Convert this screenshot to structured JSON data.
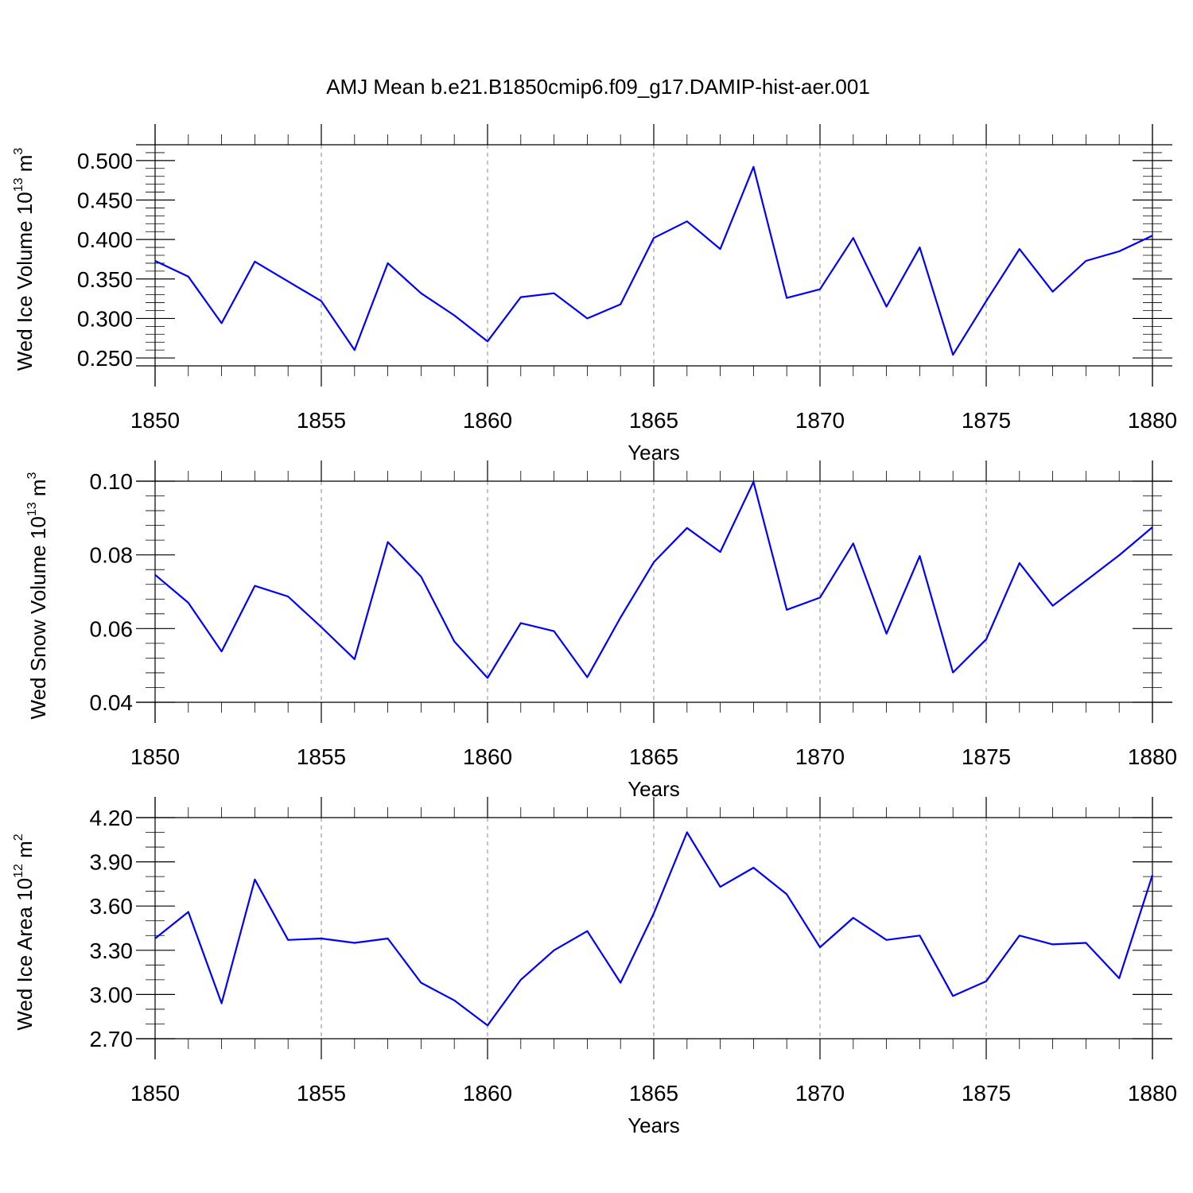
{
  "title": "AMJ Mean b.e21.B1850cmip6.f09_g17.DAMIP-hist-aer.001",
  "colors": {
    "series": "#0000ff",
    "grid": "#888888",
    "axis": "#000000"
  },
  "chart_data": [
    {
      "type": "line",
      "ylabel": "Wed Ice Volume 10",
      "ylabel_exp": "13",
      "ylabel_unit": " m",
      "ylabel_unit_exp": "3",
      "xlabel": "Years",
      "xlim": [
        1850,
        1880
      ],
      "ylim": [
        0.24,
        0.52
      ],
      "yticks": [
        0.25,
        0.3,
        0.35,
        0.4,
        0.45,
        0.5
      ],
      "ytick_labels": [
        "0.250",
        "0.300",
        "0.350",
        "0.400",
        "0.450",
        "0.500"
      ],
      "yminor_step": 0.01,
      "xticks": [
        1850,
        1855,
        1860,
        1865,
        1870,
        1875,
        1880
      ],
      "xtick_labels": [
        "1850",
        "1855",
        "1860",
        "1865",
        "1870",
        "1875",
        "1880"
      ],
      "grid_x": [
        1855,
        1860,
        1865,
        1870,
        1875
      ],
      "x": [
        1850,
        1851,
        1852,
        1853,
        1854,
        1855,
        1856,
        1857,
        1858,
        1859,
        1860,
        1861,
        1862,
        1863,
        1864,
        1865,
        1866,
        1867,
        1868,
        1869,
        1870,
        1871,
        1872,
        1873,
        1874,
        1875,
        1876,
        1877,
        1878,
        1879,
        1880
      ],
      "values": [
        0.373,
        0.353,
        0.294,
        0.372,
        0.347,
        0.322,
        0.26,
        0.37,
        0.332,
        0.304,
        0.271,
        0.327,
        0.332,
        0.3,
        0.318,
        0.402,
        0.423,
        0.388,
        0.492,
        0.326,
        0.337,
        0.402,
        0.315,
        0.39,
        0.254,
        0.322,
        0.388,
        0.334,
        0.373,
        0.385,
        0.405
      ]
    },
    {
      "type": "line",
      "ylabel": "Wed Snow Volume 10",
      "ylabel_exp": "13",
      "ylabel_unit": " m",
      "ylabel_unit_exp": "3",
      "xlabel": "Years",
      "xlim": [
        1850,
        1880
      ],
      "ylim": [
        0.04,
        0.1
      ],
      "yticks": [
        0.04,
        0.06,
        0.08,
        0.1
      ],
      "ytick_labels": [
        "0.04",
        "0.06",
        "0.08",
        "0.10"
      ],
      "yminor_step": 0.004,
      "xticks": [
        1850,
        1855,
        1860,
        1865,
        1870,
        1875,
        1880
      ],
      "xtick_labels": [
        "1850",
        "1855",
        "1860",
        "1865",
        "1870",
        "1875",
        "1880"
      ],
      "grid_x": [
        1855,
        1860,
        1865,
        1870,
        1875
      ],
      "x": [
        1850,
        1851,
        1852,
        1853,
        1854,
        1855,
        1856,
        1857,
        1858,
        1859,
        1860,
        1861,
        1862,
        1863,
        1864,
        1865,
        1866,
        1867,
        1868,
        1869,
        1870,
        1871,
        1872,
        1873,
        1874,
        1875,
        1876,
        1877,
        1878,
        1879,
        1880
      ],
      "values": [
        0.0746,
        0.067,
        0.0538,
        0.0716,
        0.0687,
        0.0604,
        0.0517,
        0.0835,
        0.0741,
        0.0565,
        0.0466,
        0.0615,
        0.0593,
        0.0468,
        0.063,
        0.078,
        0.0873,
        0.0808,
        0.0998,
        0.0651,
        0.0684,
        0.0831,
        0.0586,
        0.0797,
        0.0481,
        0.0571,
        0.0778,
        0.0662,
        0.073,
        0.0799,
        0.0875
      ]
    },
    {
      "type": "line",
      "ylabel": "Wed Ice Area 10",
      "ylabel_exp": "12",
      "ylabel_unit": " m",
      "ylabel_unit_exp": "2",
      "xlabel": "Years",
      "xlim": [
        1850,
        1880
      ],
      "ylim": [
        2.7,
        4.2
      ],
      "yticks": [
        2.7,
        3.0,
        3.3,
        3.6,
        3.9,
        4.2
      ],
      "ytick_labels": [
        "2.70",
        "3.00",
        "3.30",
        "3.60",
        "3.90",
        "4.20"
      ],
      "yminor_step": 0.1,
      "xticks": [
        1850,
        1855,
        1860,
        1865,
        1870,
        1875,
        1880
      ],
      "xtick_labels": [
        "1850",
        "1855",
        "1860",
        "1865",
        "1870",
        "1875",
        "1880"
      ],
      "grid_x": [
        1855,
        1860,
        1865,
        1870,
        1875
      ],
      "x": [
        1850,
        1851,
        1852,
        1853,
        1854,
        1855,
        1856,
        1857,
        1858,
        1859,
        1860,
        1861,
        1862,
        1863,
        1864,
        1865,
        1866,
        1867,
        1868,
        1869,
        1870,
        1871,
        1872,
        1873,
        1874,
        1875,
        1876,
        1877,
        1878,
        1879,
        1880
      ],
      "values": [
        3.38,
        3.56,
        2.94,
        3.78,
        3.37,
        3.38,
        3.35,
        3.38,
        3.08,
        2.96,
        2.79,
        3.1,
        3.3,
        3.43,
        3.08,
        3.55,
        4.1,
        3.73,
        3.86,
        3.68,
        3.32,
        3.52,
        3.37,
        3.4,
        2.99,
        3.09,
        3.4,
        3.34,
        3.35,
        3.11,
        3.81
      ]
    }
  ]
}
